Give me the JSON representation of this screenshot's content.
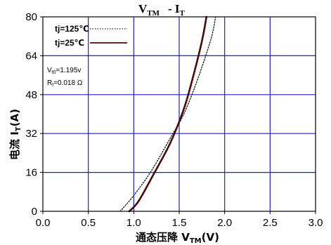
{
  "chart_data": {
    "type": "line",
    "title_main": "V",
    "title_main_sub": "TM",
    "title_sep": "- I",
    "title_sep_sub": "T",
    "xlabel_prefix": "通态压降 V",
    "xlabel_sub": "TM",
    "xlabel_suffix": "(V)",
    "ylabel_prefix": "电流 I",
    "ylabel_sub": "T",
    "ylabel_suffix": "(A)",
    "xlim": [
      0,
      3.0
    ],
    "ylim": [
      0,
      80
    ],
    "xticks": [
      0.0,
      0.5,
      1.0,
      1.5,
      2.0,
      2.5,
      3.0
    ],
    "xtick_labels": [
      "0.0",
      "0.5",
      "1.0",
      "1.5",
      "2.0",
      "2.5",
      "3.0"
    ],
    "yticks": [
      0,
      16,
      32,
      48,
      64,
      80
    ],
    "ytick_labels": [
      "0",
      "16",
      "32",
      "48",
      "64",
      "80"
    ],
    "grid": true,
    "grid_color": "#1f1fd0",
    "legend_position": "top-left",
    "series": [
      {
        "name": "tj=125℃",
        "style": "dotted",
        "color": "#222222",
        "x": [
          0.85,
          1.0,
          1.2,
          1.4,
          1.55,
          1.7,
          1.85,
          1.9
        ],
        "y": [
          0,
          6.5,
          17,
          30,
          40,
          54,
          71,
          80
        ]
      },
      {
        "name": "tj=25℃",
        "style": "solid",
        "color": "#4a0a0a",
        "x": [
          0.95,
          1.05,
          1.2,
          1.4,
          1.55,
          1.65,
          1.75,
          1.8
        ],
        "y": [
          0,
          4,
          14,
          28,
          42,
          55,
          70,
          80
        ]
      }
    ],
    "annotations": {
      "vt0_prefix": "V",
      "vt0_sub": "t0",
      "vt0_value": "=1.195v",
      "rt_prefix": "R",
      "rt_sub": "t",
      "rt_value": "=0.018 Ω"
    }
  }
}
